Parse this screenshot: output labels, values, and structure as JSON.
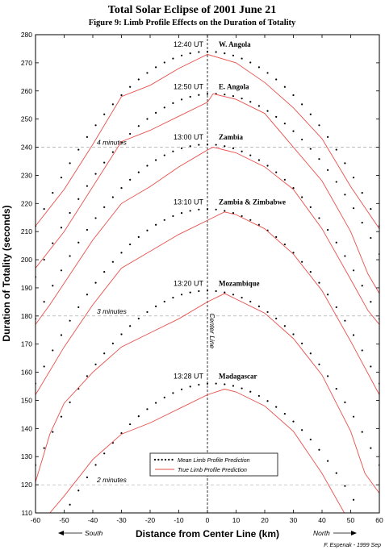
{
  "title": "Total Solar Eclipse of 2001 June 21",
  "subtitle": "Figure 9:  Limb Profile Effects on the Duration of Totality",
  "credit": "F. Espenak - 1999 Sep",
  "center_line_label": "Center Line",
  "south_label": "South",
  "north_label": "North",
  "colors": {
    "mean": "#000000",
    "true": "#e8504c",
    "grid": "#999999"
  },
  "chart_data": {
    "type": "line",
    "xlabel": "Distance from Center Line (km)",
    "ylabel": "Duration of Totality (seconds)",
    "xlim": [
      -60,
      60
    ],
    "ylim": [
      110,
      280
    ],
    "xticks": [
      -60,
      -50,
      -40,
      -30,
      -20,
      -10,
      0,
      10,
      20,
      30,
      40,
      50,
      60
    ],
    "yticks": [
      110,
      120,
      130,
      140,
      150,
      160,
      170,
      180,
      190,
      200,
      210,
      220,
      230,
      240,
      250,
      260,
      270,
      280
    ],
    "reference_lines": [
      {
        "y": 240,
        "label": "4 minutes"
      },
      {
        "y": 180,
        "label": "3 minutes"
      },
      {
        "y": 120,
        "label": "2 minutes"
      }
    ],
    "legend": {
      "position": "bottom-center",
      "entries": [
        "Mean Limb Profile Prediction",
        "True Limb Profile Prediction"
      ]
    },
    "locations": [
      {
        "time": "12:40 UT",
        "place": "W. Angola",
        "mean": {
          "peak_x": 0,
          "peak": 274,
          "x": [
            -60,
            -50,
            -40,
            -30,
            -20,
            -10,
            0,
            10,
            20,
            30,
            40,
            50,
            60
          ],
          "y": [
            212,
            231,
            247,
            259,
            267,
            272,
            274,
            272,
            267,
            259,
            247,
            231,
            212
          ]
        },
        "true": {
          "x": [
            -60,
            -50,
            -40,
            -30,
            -20,
            -10,
            0,
            10,
            20,
            30,
            40,
            50,
            56,
            60
          ],
          "y": [
            212,
            225,
            241,
            258,
            262,
            268,
            273,
            270,
            263,
            254,
            243,
            226,
            217,
            211
          ]
        }
      },
      {
        "time": "12:50 UT",
        "place": "E. Angola",
        "mean": {
          "peak_x": 2,
          "peak": 259,
          "x": [
            -60,
            -50,
            -40,
            -30,
            -20,
            -10,
            0,
            10,
            20,
            30,
            40,
            50,
            60
          ],
          "y": [
            197,
            216,
            232,
            244,
            252,
            257,
            259,
            258,
            253,
            245,
            233,
            217,
            198
          ]
        },
        "true": {
          "x": [
            -60,
            -50,
            -40,
            -30,
            -20,
            -10,
            0,
            2,
            10,
            20,
            30,
            40,
            50,
            56,
            60
          ],
          "y": [
            197,
            210,
            226,
            242,
            246,
            251,
            256,
            259,
            257,
            252,
            240,
            228,
            210,
            195,
            188
          ]
        }
      },
      {
        "time": "13:00 UT",
        "place": "Zambia",
        "mean": {
          "peak_x": 0,
          "peak": 241,
          "x": [
            -60,
            -50,
            -40,
            -30,
            -20,
            -10,
            0,
            10,
            20,
            30,
            40,
            50,
            60
          ],
          "y": [
            179,
            198,
            214,
            226,
            234,
            239,
            241,
            239,
            234,
            226,
            214,
            198,
            179
          ]
        },
        "true": {
          "x": [
            -60,
            -55,
            -40,
            -30,
            -20,
            -10,
            0,
            2,
            10,
            20,
            30,
            40,
            50,
            56,
            60
          ],
          "y": [
            177,
            184,
            207,
            220,
            226,
            233,
            239,
            240,
            238,
            233,
            225,
            211,
            193,
            182,
            177
          ]
        }
      },
      {
        "time": "13:10 UT",
        "place": "Zambia & Zimbabwe",
        "mean": {
          "peak_x": 0,
          "peak": 218,
          "x": [
            -60,
            -50,
            -40,
            -30,
            -20,
            -10,
            0,
            10,
            20,
            30,
            40,
            50,
            60
          ],
          "y": [
            156,
            175,
            191,
            203,
            211,
            216,
            218,
            216,
            211,
            203,
            191,
            175,
            156
          ]
        },
        "true": {
          "x": [
            -60,
            -50,
            -40,
            -30,
            -20,
            -10,
            0,
            6,
            10,
            20,
            30,
            40,
            50,
            60
          ],
          "y": [
            152,
            169,
            184,
            197,
            203,
            209,
            214,
            217,
            216,
            211,
            202,
            189,
            171,
            152
          ]
        }
      },
      {
        "time": "13:20 UT",
        "place": "Mozambique",
        "mean": {
          "peak_x": 0,
          "peak": 189,
          "x": [
            -60,
            -50,
            -40,
            -30,
            -20,
            -10,
            0,
            10,
            20,
            30,
            40,
            50,
            60
          ],
          "y": [
            127,
            146,
            162,
            174,
            182,
            187,
            189,
            187,
            182,
            174,
            162,
            146,
            127
          ]
        },
        "true": {
          "x": [
            -60,
            -55,
            -50,
            -40,
            -30,
            -20,
            -10,
            0,
            6,
            10,
            20,
            30,
            40,
            50,
            55,
            60
          ],
          "y": [
            121,
            138,
            149,
            160,
            169,
            174,
            179,
            185,
            188,
            186,
            181,
            172,
            159,
            139,
            124,
            117
          ]
        }
      },
      {
        "time": "13:28 UT",
        "place": "Madagascar",
        "mean": {
          "peak_x": 2,
          "peak": 156,
          "x": [
            -60,
            -50,
            -40,
            -30,
            -20,
            -10,
            0,
            10,
            20,
            30,
            40,
            50,
            60
          ],
          "y": [
            93,
            112,
            128,
            140,
            148,
            153,
            156,
            154,
            149,
            141,
            129,
            113,
            94
          ]
        },
        "true": {
          "x": [
            -55,
            -50,
            -40,
            -30,
            -20,
            -10,
            0,
            6,
            10,
            20,
            30,
            40,
            50
          ],
          "y": [
            110,
            116,
            129,
            138,
            142,
            147,
            152,
            154,
            153,
            148,
            139,
            124,
            106
          ]
        }
      }
    ]
  }
}
